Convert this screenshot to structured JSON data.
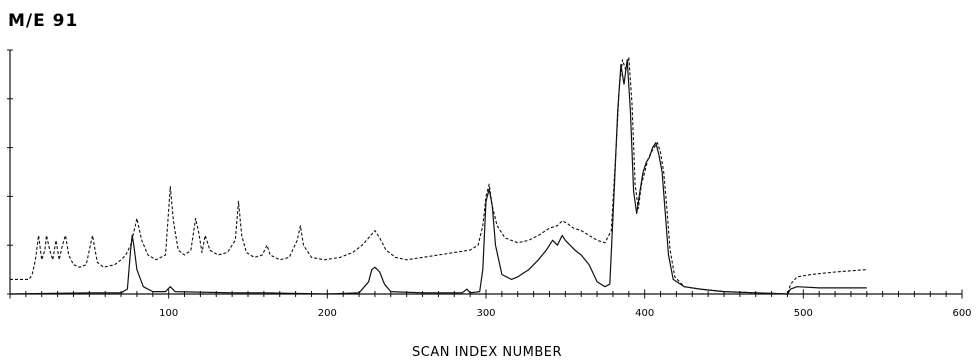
{
  "chart_data": {
    "type": "line",
    "title": "M/E 91",
    "xlabel": "SCAN INDEX NUMBER",
    "ylabel": "",
    "xlim": [
      0,
      600
    ],
    "ylim": [
      0,
      1
    ],
    "grid": false,
    "x_tick_labels": [
      "100",
      "200",
      "300",
      "400",
      "500",
      "600"
    ],
    "x_tick_values": [
      100,
      200,
      300,
      400,
      500,
      600
    ],
    "y_tick_values": [
      0,
      0.2,
      0.4,
      0.6,
      0.8,
      1.0
    ],
    "series": [
      {
        "style": "dashed",
        "points": [
          [
            0,
            0.06
          ],
          [
            12,
            0.06
          ],
          [
            14,
            0.08
          ],
          [
            16,
            0.14
          ],
          [
            18,
            0.24
          ],
          [
            20,
            0.14
          ],
          [
            22,
            0.18
          ],
          [
            23,
            0.24
          ],
          [
            25,
            0.18
          ],
          [
            27,
            0.14
          ],
          [
            29,
            0.22
          ],
          [
            31,
            0.14
          ],
          [
            33,
            0.2
          ],
          [
            35,
            0.24
          ],
          [
            37,
            0.16
          ],
          [
            40,
            0.12
          ],
          [
            44,
            0.11
          ],
          [
            48,
            0.12
          ],
          [
            52,
            0.24
          ],
          [
            55,
            0.13
          ],
          [
            59,
            0.11
          ],
          [
            66,
            0.12
          ],
          [
            70,
            0.14
          ],
          [
            73,
            0.16
          ],
          [
            76,
            0.2
          ],
          [
            79,
            0.28
          ],
          [
            80,
            0.31
          ],
          [
            83,
            0.22
          ],
          [
            87,
            0.16
          ],
          [
            92,
            0.14
          ],
          [
            98,
            0.16
          ],
          [
            101,
            0.44
          ],
          [
            103,
            0.3
          ],
          [
            106,
            0.18
          ],
          [
            110,
            0.16
          ],
          [
            114,
            0.18
          ],
          [
            117,
            0.31
          ],
          [
            119,
            0.25
          ],
          [
            121,
            0.17
          ],
          [
            123,
            0.24
          ],
          [
            126,
            0.18
          ],
          [
            131,
            0.16
          ],
          [
            137,
            0.17
          ],
          [
            142,
            0.22
          ],
          [
            144,
            0.38
          ],
          [
            146,
            0.24
          ],
          [
            149,
            0.17
          ],
          [
            154,
            0.15
          ],
          [
            159,
            0.16
          ],
          [
            162,
            0.2
          ],
          [
            164,
            0.16
          ],
          [
            170,
            0.14
          ],
          [
            176,
            0.15
          ],
          [
            181,
            0.22
          ],
          [
            183,
            0.28
          ],
          [
            185,
            0.2
          ],
          [
            190,
            0.15
          ],
          [
            198,
            0.14
          ],
          [
            208,
            0.15
          ],
          [
            216,
            0.17
          ],
          [
            222,
            0.2
          ],
          [
            226,
            0.23
          ],
          [
            230,
            0.26
          ],
          [
            233,
            0.23
          ],
          [
            237,
            0.18
          ],
          [
            243,
            0.15
          ],
          [
            250,
            0.14
          ],
          [
            260,
            0.15
          ],
          [
            270,
            0.16
          ],
          [
            280,
            0.17
          ],
          [
            290,
            0.18
          ],
          [
            295,
            0.2
          ],
          [
            298,
            0.28
          ],
          [
            300,
            0.4
          ],
          [
            302,
            0.45
          ],
          [
            304,
            0.36
          ],
          [
            307,
            0.28
          ],
          [
            312,
            0.23
          ],
          [
            320,
            0.21
          ],
          [
            327,
            0.22
          ],
          [
            333,
            0.24
          ],
          [
            340,
            0.27
          ],
          [
            345,
            0.28
          ],
          [
            348,
            0.3
          ],
          [
            351,
            0.29
          ],
          [
            355,
            0.27
          ],
          [
            360,
            0.26
          ],
          [
            365,
            0.24
          ],
          [
            370,
            0.22
          ],
          [
            375,
            0.21
          ],
          [
            379,
            0.26
          ],
          [
            382,
            0.6
          ],
          [
            384,
            0.85
          ],
          [
            386,
            0.96
          ],
          [
            388,
            0.92
          ],
          [
            390,
            0.97
          ],
          [
            392,
            0.78
          ],
          [
            394,
            0.45
          ],
          [
            396,
            0.35
          ],
          [
            398,
            0.45
          ],
          [
            400,
            0.5
          ],
          [
            402,
            0.55
          ],
          [
            404,
            0.58
          ],
          [
            406,
            0.6
          ],
          [
            408,
            0.62
          ],
          [
            410,
            0.58
          ],
          [
            412,
            0.5
          ],
          [
            414,
            0.35
          ],
          [
            416,
            0.18
          ],
          [
            419,
            0.07
          ],
          [
            425,
            0.03
          ],
          [
            435,
            0.02
          ],
          [
            450,
            0.01
          ],
          [
            470,
            0.005
          ],
          [
            490,
            0.0
          ],
          [
            492,
            0.04
          ],
          [
            496,
            0.07
          ],
          [
            505,
            0.08
          ],
          [
            520,
            0.09
          ],
          [
            540,
            0.1
          ]
        ]
      },
      {
        "style": "solid",
        "points": [
          [
            0,
            0
          ],
          [
            50,
            0.005
          ],
          [
            60,
            0.005
          ],
          [
            70,
            0.005
          ],
          [
            74,
            0.02
          ],
          [
            76,
            0.18
          ],
          [
            77,
            0.24
          ],
          [
            78,
            0.2
          ],
          [
            80,
            0.1
          ],
          [
            84,
            0.03
          ],
          [
            90,
            0.01
          ],
          [
            98,
            0.01
          ],
          [
            101,
            0.03
          ],
          [
            104,
            0.01
          ],
          [
            140,
            0.005
          ],
          [
            160,
            0.005
          ],
          [
            200,
            0.0
          ],
          [
            220,
            0.005
          ],
          [
            226,
            0.05
          ],
          [
            228,
            0.1
          ],
          [
            230,
            0.11
          ],
          [
            233,
            0.09
          ],
          [
            236,
            0.04
          ],
          [
            240,
            0.01
          ],
          [
            260,
            0.005
          ],
          [
            285,
            0.005
          ],
          [
            288,
            0.02
          ],
          [
            290,
            0.005
          ],
          [
            296,
            0.01
          ],
          [
            298,
            0.1
          ],
          [
            300,
            0.38
          ],
          [
            302,
            0.43
          ],
          [
            304,
            0.36
          ],
          [
            306,
            0.2
          ],
          [
            310,
            0.08
          ],
          [
            316,
            0.06
          ],
          [
            320,
            0.07
          ],
          [
            327,
            0.1
          ],
          [
            333,
            0.14
          ],
          [
            338,
            0.18
          ],
          [
            342,
            0.22
          ],
          [
            345,
            0.2
          ],
          [
            348,
            0.24
          ],
          [
            350,
            0.22
          ],
          [
            353,
            0.2
          ],
          [
            356,
            0.18
          ],
          [
            360,
            0.16
          ],
          [
            365,
            0.12
          ],
          [
            370,
            0.05
          ],
          [
            375,
            0.03
          ],
          [
            378,
            0.04
          ],
          [
            381,
            0.45
          ],
          [
            383,
            0.75
          ],
          [
            385,
            0.94
          ],
          [
            387,
            0.86
          ],
          [
            389,
            0.96
          ],
          [
            391,
            0.75
          ],
          [
            393,
            0.42
          ],
          [
            395,
            0.33
          ],
          [
            397,
            0.42
          ],
          [
            399,
            0.5
          ],
          [
            401,
            0.54
          ],
          [
            403,
            0.56
          ],
          [
            405,
            0.6
          ],
          [
            407,
            0.62
          ],
          [
            409,
            0.57
          ],
          [
            411,
            0.5
          ],
          [
            413,
            0.33
          ],
          [
            415,
            0.16
          ],
          [
            418,
            0.06
          ],
          [
            425,
            0.03
          ],
          [
            435,
            0.02
          ],
          [
            450,
            0.01
          ],
          [
            470,
            0.005
          ],
          [
            490,
            0.0
          ],
          [
            492,
            0.02
          ],
          [
            496,
            0.03
          ],
          [
            510,
            0.025
          ],
          [
            540,
            0.025
          ]
        ]
      }
    ]
  }
}
